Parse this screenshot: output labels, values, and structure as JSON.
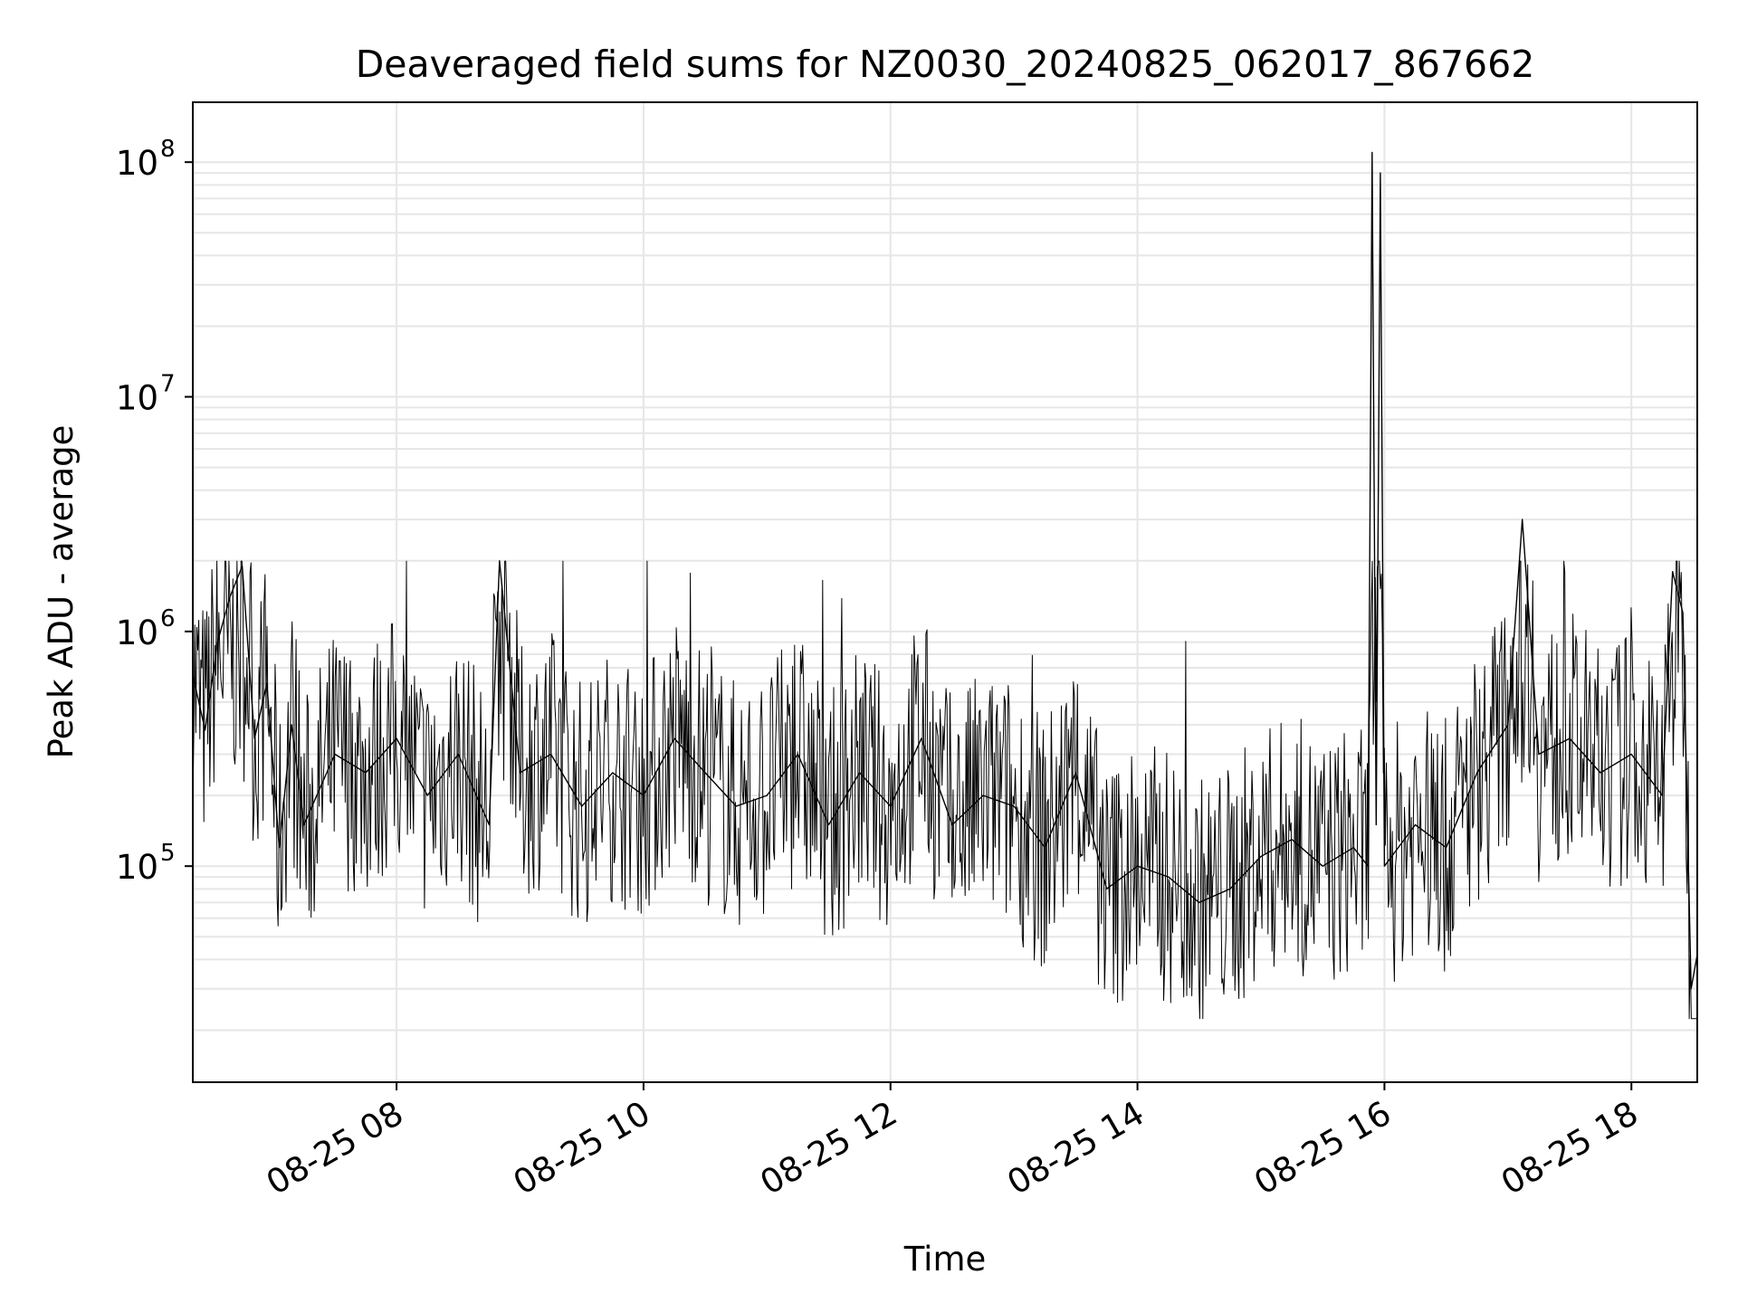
{
  "chart_data": {
    "type": "line",
    "title": "Deaveraged field sums for NZ0030_20240825_062017_867662",
    "xlabel": "Time",
    "ylabel": "Peak ADU - average",
    "yscale": "log",
    "xlim": [
      "2024-08-25 06:21",
      "2024-08-25 18:32"
    ],
    "ylim": [
      12000,
      180000000
    ],
    "x_ticks": [
      {
        "t": "2024-08-25 08:00",
        "label": "08-25 08"
      },
      {
        "t": "2024-08-25 10:00",
        "label": "08-25 10"
      },
      {
        "t": "2024-08-25 12:00",
        "label": "08-25 12"
      },
      {
        "t": "2024-08-25 14:00",
        "label": "08-25 14"
      },
      {
        "t": "2024-08-25 16:00",
        "label": "08-25 16"
      },
      {
        "t": "2024-08-25 18:00",
        "label": "08-25 18"
      }
    ],
    "y_ticks": [
      {
        "value": 100000,
        "base": "10",
        "exp": "5"
      },
      {
        "value": 1000000,
        "base": "10",
        "exp": "6"
      },
      {
        "value": 10000000,
        "base": "10",
        "exp": "7"
      },
      {
        "value": 100000000,
        "base": "10",
        "exp": "8"
      }
    ],
    "grid": "major and minor",
    "line_color": "#000000",
    "grid_color": "#e6e6e6",
    "series": [
      {
        "x": [
          "2024-08-25 06:21",
          "2024-08-25 06:27",
          "2024-08-25 06:33",
          "2024-08-25 06:39",
          "2024-08-25 06:45",
          "2024-08-25 06:51",
          "2024-08-25 06:57",
          "2024-08-25 07:03",
          "2024-08-25 07:09",
          "2024-08-25 07:15",
          "2024-08-25 07:30",
          "2024-08-25 07:45",
          "2024-08-25 08:00",
          "2024-08-25 08:15",
          "2024-08-25 08:30",
          "2024-08-25 08:45",
          "2024-08-25 08:50",
          "2024-08-25 09:00",
          "2024-08-25 09:15",
          "2024-08-25 09:30",
          "2024-08-25 09:45",
          "2024-08-25 10:00",
          "2024-08-25 10:15",
          "2024-08-25 10:30",
          "2024-08-25 10:45",
          "2024-08-25 11:00",
          "2024-08-25 11:15",
          "2024-08-25 11:30",
          "2024-08-25 11:45",
          "2024-08-25 12:00",
          "2024-08-25 12:15",
          "2024-08-25 12:30",
          "2024-08-25 12:45",
          "2024-08-25 13:00",
          "2024-08-25 13:15",
          "2024-08-25 13:30",
          "2024-08-25 13:45",
          "2024-08-25 14:00",
          "2024-08-25 14:15",
          "2024-08-25 14:30",
          "2024-08-25 14:45",
          "2024-08-25 15:00",
          "2024-08-25 15:15",
          "2024-08-25 15:30",
          "2024-08-25 15:45",
          "2024-08-25 15:52",
          "2024-08-25 15:54",
          "2024-08-25 15:56",
          "2024-08-25 15:58",
          "2024-08-25 16:00",
          "2024-08-25 16:15",
          "2024-08-25 16:30",
          "2024-08-25 16:45",
          "2024-08-25 17:00",
          "2024-08-25 17:07",
          "2024-08-25 17:15",
          "2024-08-25 17:30",
          "2024-08-25 17:45",
          "2024-08-25 18:00",
          "2024-08-25 18:15",
          "2024-08-25 18:20",
          "2024-08-25 18:25",
          "2024-08-25 18:29",
          "2024-08-25 18:32"
        ],
        "y": [
          650000,
          380000,
          900000,
          1400000,
          1900000,
          350000,
          600000,
          120000,
          400000,
          150000,
          300000,
          250000,
          350000,
          200000,
          300000,
          150000,
          2000000,
          250000,
          300000,
          180000,
          250000,
          200000,
          350000,
          250000,
          180000,
          200000,
          300000,
          150000,
          250000,
          180000,
          350000,
          150000,
          200000,
          180000,
          120000,
          250000,
          80000,
          100000,
          90000,
          70000,
          80000,
          110000,
          130000,
          100000,
          120000,
          100000,
          110000000,
          150000,
          90000000,
          100000,
          150000,
          120000,
          250000,
          400000,
          3000000,
          300000,
          350000,
          250000,
          300000,
          200000,
          1800000,
          1200000,
          30000,
          42000
        ]
      }
    ]
  }
}
